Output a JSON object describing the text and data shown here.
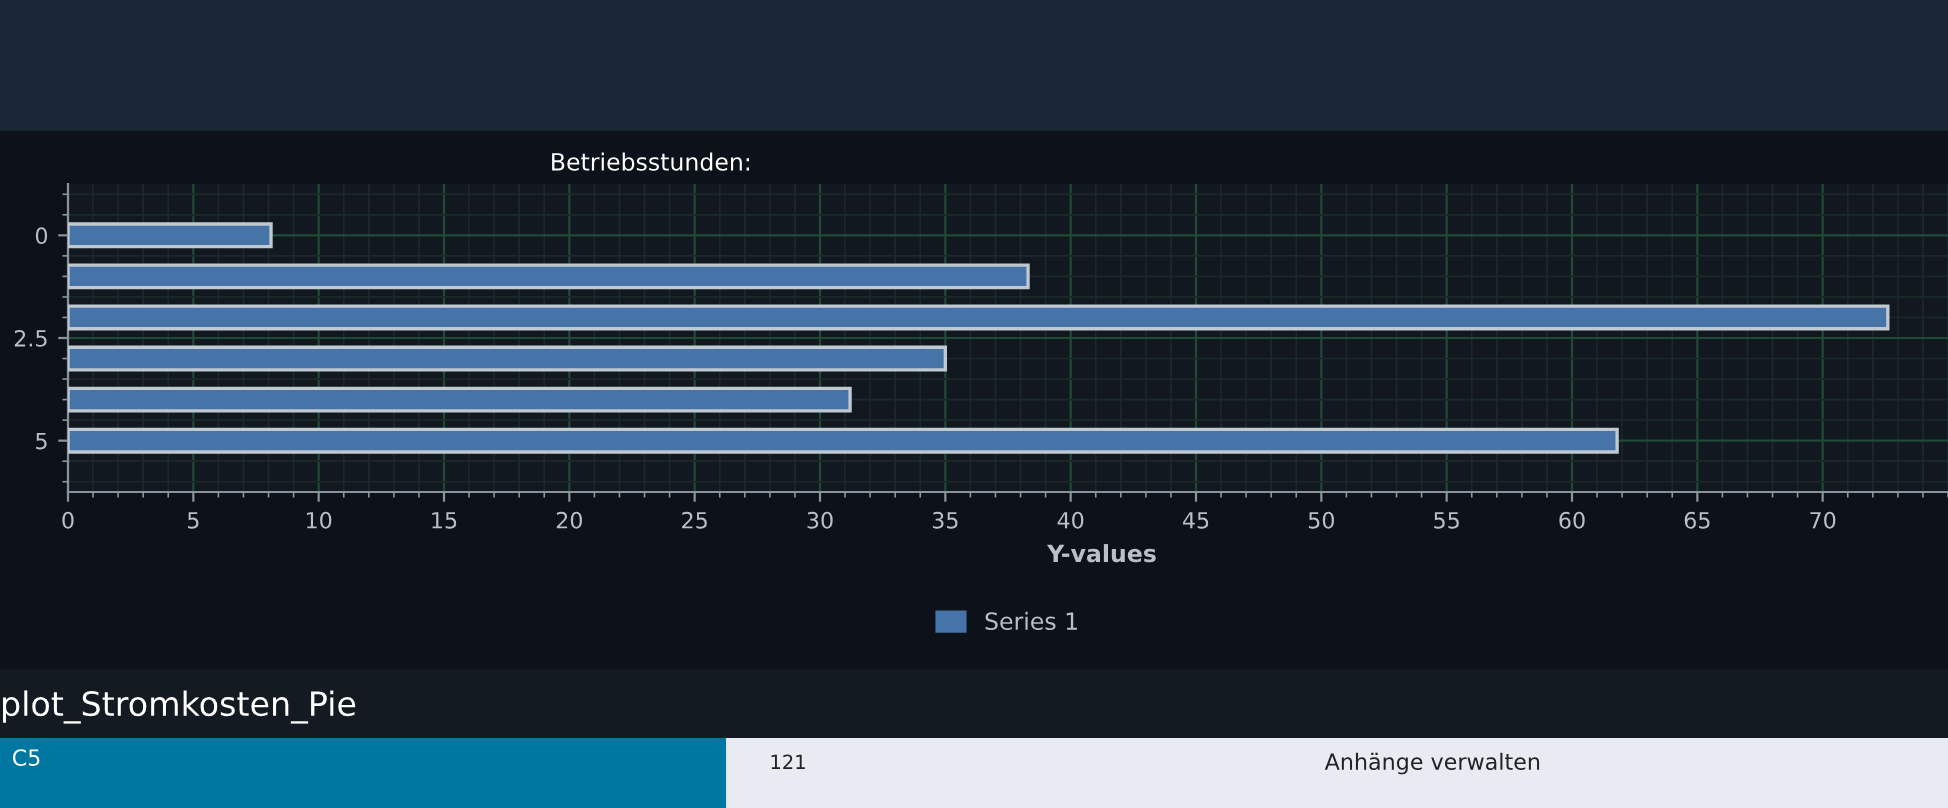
{
  "chart_data": {
    "type": "bar",
    "orientation": "horizontal",
    "title": "Betriebsstunden:",
    "xlabel": "Y-values",
    "x": [
      0,
      1,
      2,
      3,
      4,
      5
    ],
    "series": [
      {
        "name": "Series 1",
        "color": "#4673a8",
        "values": [
          8.1,
          38.3,
          72.6,
          35.0,
          31.2,
          61.8
        ]
      }
    ],
    "xlim": [
      0,
      75
    ],
    "xticks": [
      0,
      5,
      10,
      15,
      20,
      25,
      30,
      35,
      40,
      45,
      50,
      55,
      60,
      65,
      70
    ],
    "ylim": [
      6.25,
      -1.25
    ],
    "yticks": [
      0,
      2.5,
      5
    ],
    "grid": true,
    "legend": "bottom",
    "annotations": [
      "plot_Stromkosten_Pie",
      "C5",
      "121",
      "Anhänge verwalten"
    ]
  }
}
